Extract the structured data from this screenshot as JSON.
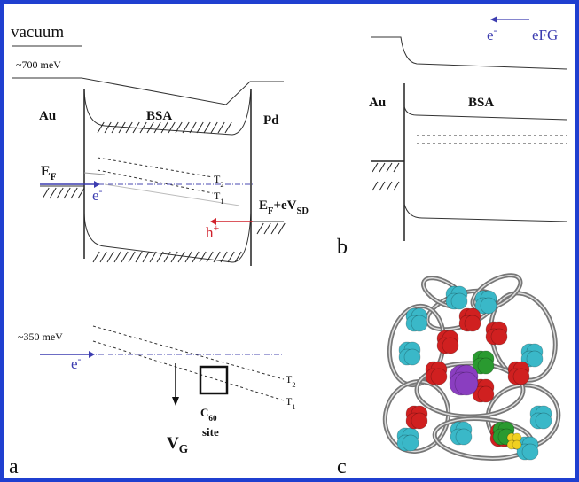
{
  "panel_a": {
    "label": "a",
    "vacuum": "vacuum",
    "offset_top": "~700 meV",
    "left_metal": "Au",
    "molecule": "BSA",
    "right_metal": "Pd",
    "fermi_left": {
      "main": "E",
      "sub": "F"
    },
    "electron": {
      "main": "e",
      "sup": "-"
    },
    "t2": {
      "main": "T",
      "sub": "2"
    },
    "t1": {
      "main": "T",
      "sub": "1"
    },
    "hole": {
      "main": "h",
      "sup": "+"
    },
    "fermi_right": {
      "main": "E",
      "sub1": "F",
      "mid": "+eV",
      "sub2": "SD"
    },
    "offset_bottom": "~350 meV",
    "electron_bottom": {
      "main": "e",
      "sup": "-"
    },
    "t2_bottom": {
      "main": "T",
      "sub": "2"
    },
    "t1_bottom": {
      "main": "T",
      "sub": "1"
    },
    "site": {
      "main": "C",
      "sub": "60",
      "line2": "site"
    },
    "gate": {
      "main": "V",
      "sub": "G"
    }
  },
  "panel_b": {
    "label": "b",
    "metal": "Au",
    "molecule": "BSA",
    "electron": {
      "main": "e",
      "sup": "-"
    },
    "field": "eFG"
  },
  "panel_c": {
    "label": "c"
  }
}
